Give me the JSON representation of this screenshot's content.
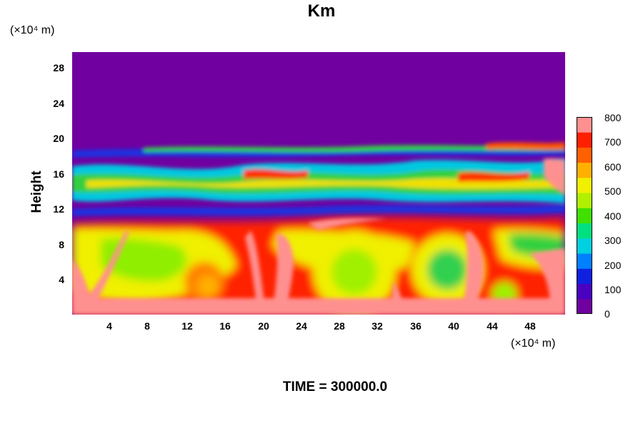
{
  "chart_data": {
    "type": "heatmap",
    "title": "Km",
    "ylabel": "Height",
    "x_unit": "(×10⁴ m)",
    "y_unit": "(×10⁴ m)",
    "xlim": [
      0,
      52
    ],
    "ylim": [
      0,
      30
    ],
    "x_ticks": [
      "4",
      "8",
      "12",
      "16",
      "20",
      "24",
      "28",
      "32",
      "36",
      "40",
      "44",
      "48"
    ],
    "y_ticks": [
      "4",
      "8",
      "12",
      "16",
      "20",
      "24",
      "28"
    ],
    "colorbar": {
      "min": 0,
      "max": 800,
      "ticks": [
        "800",
        "700",
        "600",
        "500",
        "400",
        "300",
        "200",
        "100",
        "0"
      ],
      "colors": [
        "#7000a0",
        "#4a00c0",
        "#1020e0",
        "#0080ff",
        "#00d0e0",
        "#00e080",
        "#40e000",
        "#b0f000",
        "#f0f000",
        "#ffb000",
        "#ff6000",
        "#ff2000",
        "#ff9090"
      ]
    }
  },
  "footer": "TIME = 300000.0"
}
